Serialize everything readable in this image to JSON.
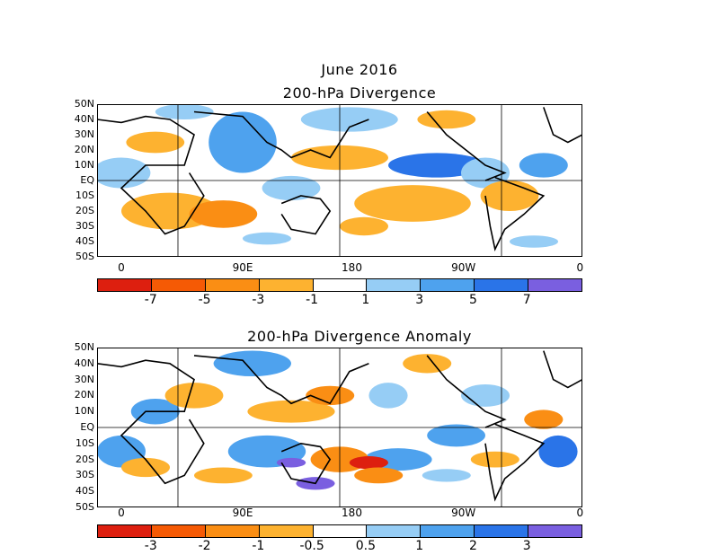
{
  "figure": {
    "title": "June 2016",
    "panels": [
      {
        "subtitle": "200-hPa Divergence",
        "lat_labels": [
          "50N",
          "40N",
          "30N",
          "20N",
          "10N",
          "EQ",
          "10S",
          "20S",
          "30S",
          "40S",
          "50S"
        ],
        "lon_labels": [
          "0",
          "90E",
          "180",
          "90W",
          "0"
        ],
        "colorbar_labels": [
          "-7",
          "-5",
          "-3",
          "-1",
          "1",
          "3",
          "5",
          "7"
        ],
        "colorbar_colors": [
          "#dd1f0f",
          "#f55a05",
          "#fa8e14",
          "#fdb230",
          "#ffffff",
          "#96cdf5",
          "#4ea2ee",
          "#2a74e8",
          "#7a5fe0"
        ]
      },
      {
        "subtitle": "200-hPa Divergence Anomaly",
        "lat_labels": [
          "50N",
          "40N",
          "30N",
          "20N",
          "10N",
          "EQ",
          "10S",
          "20S",
          "30S",
          "40S",
          "50S"
        ],
        "lon_labels": [
          "0",
          "90E",
          "180",
          "90W",
          "0"
        ],
        "colorbar_labels": [
          "-3",
          "-2",
          "-1",
          "-0.5",
          "0.5",
          "1",
          "2",
          "3"
        ],
        "colorbar_colors": [
          "#dd1f0f",
          "#f55a05",
          "#fa8e14",
          "#fdb230",
          "#ffffff",
          "#96cdf5",
          "#4ea2ee",
          "#2a74e8",
          "#7a5fe0"
        ]
      }
    ]
  }
}
